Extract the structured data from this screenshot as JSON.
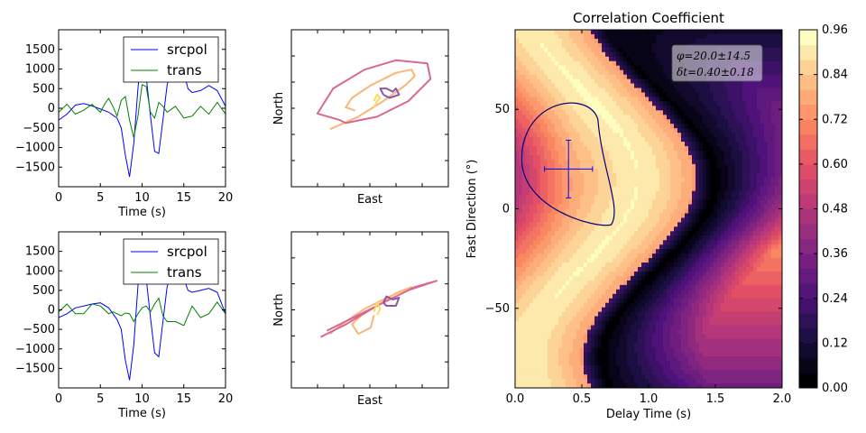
{
  "chart_data": [
    {
      "type": "line",
      "panel": "waveform-top",
      "xlabel": "Time (s)",
      "ylabel": "",
      "xlim": [
        0,
        20
      ],
      "ylim": [
        -2000,
        2000
      ],
      "xticks": [
        "0",
        "5",
        "10",
        "15",
        "20"
      ],
      "yticks": [
        "-1500",
        "-1000",
        "-500",
        "0",
        "500",
        "1000",
        "1500"
      ],
      "legend_position": "top-right",
      "series": [
        {
          "name": "srcpol",
          "color": "#0000ff",
          "x": [
            0,
            1,
            2,
            3,
            4,
            5,
            6,
            7,
            7.5,
            8,
            8.5,
            9,
            9.5,
            10,
            10.5,
            11,
            11.5,
            12,
            12.5,
            13,
            14,
            14.5,
            15,
            15.5,
            16,
            17,
            18,
            19,
            20
          ],
          "values": [
            -300,
            -150,
            80,
            120,
            60,
            -20,
            -100,
            -250,
            -500,
            -1200,
            -1750,
            -900,
            500,
            1650,
            800,
            -200,
            -1100,
            -1150,
            -300,
            600,
            1300,
            1450,
            900,
            500,
            400,
            450,
            580,
            450,
            50
          ]
        },
        {
          "name": "trans",
          "color": "#008000",
          "x": [
            0,
            1,
            2,
            3,
            4,
            5,
            5.5,
            6,
            6.5,
            7,
            7.5,
            8,
            8.5,
            9,
            9.5,
            10,
            10.5,
            11,
            11.5,
            12,
            12.5,
            13,
            14,
            15,
            16,
            17,
            18,
            19,
            20
          ],
          "values": [
            -100,
            100,
            -150,
            -50,
            100,
            -100,
            100,
            250,
            50,
            -200,
            200,
            300,
            -300,
            -750,
            -200,
            600,
            550,
            -100,
            -250,
            150,
            50,
            -100,
            50,
            -250,
            -200,
            50,
            -150,
            150,
            -150
          ]
        }
      ]
    },
    {
      "type": "line",
      "panel": "waveform-bottom",
      "xlabel": "Time (s)",
      "ylabel": "",
      "xlim": [
        0,
        20
      ],
      "ylim": [
        -2000,
        2000
      ],
      "xticks": [
        "0",
        "5",
        "10",
        "15",
        "20"
      ],
      "yticks": [
        "-1500",
        "-1000",
        "-500",
        "0",
        "500",
        "1000",
        "1500"
      ],
      "legend_position": "top-right",
      "series": [
        {
          "name": "srcpol",
          "color": "#0000ff",
          "x": [
            0,
            1,
            2,
            3,
            4,
            5,
            6,
            7,
            7.5,
            8,
            8.5,
            9,
            9.5,
            10,
            10.5,
            11,
            11.5,
            12,
            12.5,
            13,
            14,
            14.5,
            15,
            15.5,
            16,
            17,
            18,
            19,
            20
          ],
          "values": [
            -200,
            -100,
            50,
            100,
            150,
            180,
            50,
            -250,
            -500,
            -1300,
            -1800,
            -900,
            600,
            1650,
            800,
            -200,
            -1100,
            -1200,
            -300,
            600,
            1200,
            1350,
            800,
            500,
            450,
            500,
            550,
            450,
            -100
          ]
        },
        {
          "name": "trans",
          "color": "#008000",
          "x": [
            0,
            1,
            2,
            3,
            4,
            5,
            6,
            6.5,
            7,
            7.5,
            8,
            8.5,
            9,
            9.5,
            10,
            10.5,
            11,
            11.5,
            12,
            12.5,
            13,
            14,
            15,
            16,
            17,
            18,
            19,
            20
          ],
          "values": [
            -50,
            150,
            -100,
            -100,
            150,
            100,
            -100,
            -50,
            -100,
            -150,
            -80,
            -100,
            -300,
            -100,
            50,
            100,
            -50,
            150,
            300,
            -150,
            -300,
            -300,
            -400,
            100,
            -200,
            -100,
            200,
            -100
          ]
        }
      ]
    },
    {
      "type": "line",
      "panel": "particle-motion-top",
      "xlabel": "East",
      "ylabel": "North",
      "series": [
        {
          "name": "",
          "color": "#fbb578",
          "points": [
            [
              -0.75,
              -0.45
            ],
            [
              -0.3,
              -0.25
            ],
            [
              0.1,
              0.0
            ],
            [
              0.45,
              0.25
            ],
            [
              0.6,
              0.4
            ],
            [
              0.55,
              0.5
            ],
            [
              0.3,
              0.45
            ],
            [
              -0.1,
              0.25
            ],
            [
              -0.4,
              0.05
            ],
            [
              -0.5,
              -0.1
            ],
            [
              -0.35,
              -0.15
            ]
          ]
        },
        {
          "name": "",
          "color": "#d8688e",
          "points": [
            [
              -0.6,
              -0.3
            ],
            [
              -0.95,
              -0.2
            ],
            [
              -0.7,
              0.2
            ],
            [
              -0.2,
              0.5
            ],
            [
              0.3,
              0.65
            ],
            [
              0.8,
              0.6
            ],
            [
              0.85,
              0.35
            ],
            [
              0.5,
              0.0
            ],
            [
              0.0,
              -0.25
            ],
            [
              -0.5,
              -0.35
            ],
            [
              -0.6,
              -0.3
            ]
          ]
        },
        {
          "name": "",
          "color": "#8d56a8",
          "points": [
            [
              0.1,
              0.1
            ],
            [
              0.05,
              0.2
            ],
            [
              0.15,
              0.2
            ],
            [
              0.25,
              0.15
            ],
            [
              0.3,
              0.2
            ],
            [
              0.35,
              0.1
            ],
            [
              0.2,
              0.05
            ],
            [
              0.1,
              0.1
            ]
          ]
        },
        {
          "name": "",
          "color": "#fdd863",
          "points": [
            [
              -0.05,
              -0.1
            ],
            [
              0.0,
              0.0
            ],
            [
              0.05,
              0.05
            ],
            [
              0.0,
              0.1
            ],
            [
              -0.05,
              0.0
            ]
          ]
        }
      ]
    },
    {
      "type": "line",
      "panel": "particle-motion-bottom",
      "xlabel": "East",
      "ylabel": "North",
      "series": [
        {
          "name": "",
          "color": "#fbb578",
          "points": [
            [
              -0.75,
              -0.5
            ],
            [
              -0.5,
              -0.3
            ],
            [
              -0.2,
              -0.1
            ],
            [
              0.2,
              0.1
            ],
            [
              0.55,
              0.25
            ],
            [
              0.3,
              0.15
            ],
            [
              0.0,
              -0.05
            ],
            [
              -0.25,
              -0.2
            ],
            [
              -0.4,
              -0.35
            ],
            [
              -0.3,
              -0.5
            ],
            [
              -0.1,
              -0.4
            ],
            [
              -0.05,
              -0.2
            ]
          ]
        },
        {
          "name": "",
          "color": "#d8688e",
          "points": [
            [
              -0.9,
              -0.55
            ],
            [
              -0.5,
              -0.35
            ],
            [
              0.0,
              -0.05
            ],
            [
              0.5,
              0.2
            ],
            [
              0.95,
              0.35
            ],
            [
              0.6,
              0.25
            ],
            [
              0.1,
              0.0
            ],
            [
              -0.4,
              -0.25
            ],
            [
              -0.8,
              -0.45
            ]
          ]
        },
        {
          "name": "",
          "color": "#8d56a8",
          "points": [
            [
              0.1,
              0.0
            ],
            [
              0.15,
              0.1
            ],
            [
              0.25,
              0.05
            ],
            [
              0.35,
              0.08
            ],
            [
              0.3,
              -0.05
            ],
            [
              0.15,
              -0.05
            ],
            [
              0.1,
              0.0
            ]
          ]
        },
        {
          "name": "",
          "color": "#fdd863",
          "points": [
            [
              -0.05,
              -0.15
            ],
            [
              0.0,
              0.0
            ],
            [
              0.05,
              -0.1
            ],
            [
              0.0,
              -0.2
            ]
          ]
        }
      ]
    },
    {
      "type": "heatmap",
      "panel": "correlation",
      "title": "Correlation Coefficient",
      "xlabel": "Delay Time (s)",
      "ylabel": "Fast Direction (°)",
      "xlim": [
        0.0,
        2.0
      ],
      "ylim": [
        -90,
        90
      ],
      "xticks": [
        "0.0",
        "0.5",
        "1.0",
        "1.5",
        "2.0"
      ],
      "yticks": [
        "50",
        "0",
        "−50"
      ],
      "colormap": "magma",
      "vmin": 0.0,
      "vmax": 0.96,
      "colorbar_ticks": [
        "0.96",
        "0.84",
        "0.72",
        "0.60",
        "0.48",
        "0.36",
        "0.24",
        "0.12",
        "0.00"
      ],
      "best_fit": {
        "delay": 0.4,
        "delay_err": 0.18,
        "phi": 20.0,
        "phi_err": 14.5
      },
      "annotation": [
        "φ=20.0±14.5",
        "δt=0.40±0.18"
      ]
    }
  ]
}
